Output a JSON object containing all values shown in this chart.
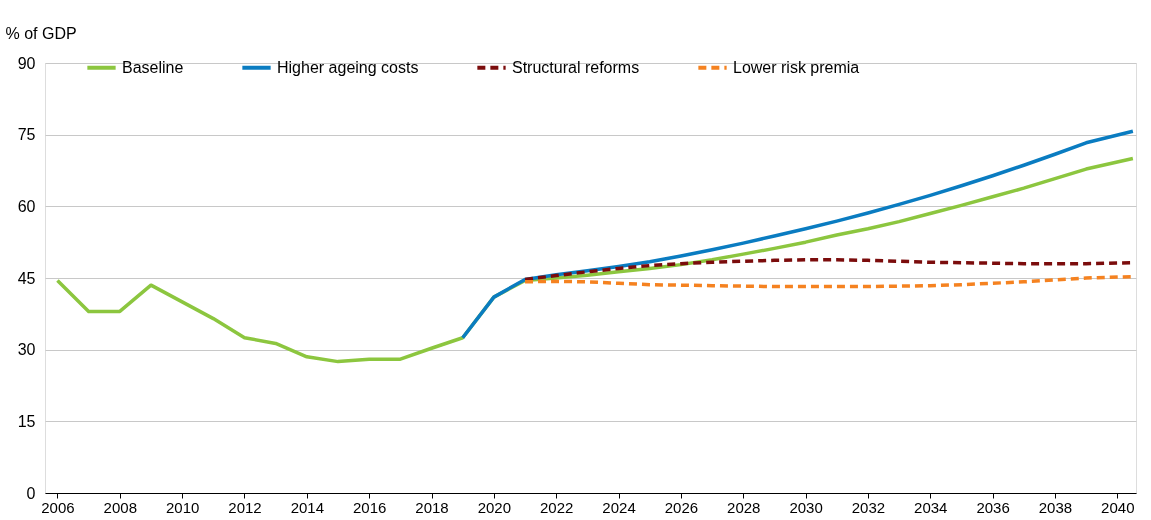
{
  "chart_data": {
    "type": "line",
    "ylabel": "% of GDP",
    "xlim": [
      2005.6,
      2040.6
    ],
    "xticks": [
      2006,
      2008,
      2010,
      2012,
      2014,
      2016,
      2018,
      2020,
      2022,
      2024,
      2026,
      2028,
      2030,
      2032,
      2034,
      2036,
      2038,
      2040
    ],
    "ylim": [
      0,
      90
    ],
    "yticks": [
      0,
      15,
      30,
      45,
      60,
      75,
      90
    ],
    "grid": "y",
    "legend": "top",
    "marker": "none",
    "series": [
      {
        "name": "Baseline",
        "color": "#8cc63f",
        "line_style": "solid",
        "x": [
          2006,
          2007,
          2008,
          2009,
          2010,
          2011,
          2012,
          2013,
          2014,
          2015,
          2016,
          2017,
          2018,
          2019,
          2020,
          2021,
          2022,
          2023,
          2024,
          2025,
          2026,
          2027,
          2028,
          2029,
          2030,
          2031,
          2032,
          2033,
          2034,
          2035,
          2036,
          2037,
          2038,
          2039,
          2040.5
        ],
        "values": [
          44.5,
          38,
          38,
          43.5,
          40,
          36.5,
          32.5,
          31.3,
          28.5,
          27.5,
          28,
          28,
          30.3,
          32.5,
          41,
          44.5,
          45,
          45.6,
          46.3,
          47,
          47.8,
          48.8,
          50,
          51.2,
          52.5,
          54,
          55.3,
          56.8,
          58.5,
          60.2,
          62,
          63.8,
          65.8,
          67.8,
          70
        ]
      },
      {
        "name": "Higher ageing costs",
        "color": "#0a7cc1",
        "line_style": "solid",
        "x": [
          2019,
          2020,
          2021,
          2022,
          2023,
          2024,
          2025,
          2026,
          2027,
          2028,
          2029,
          2030,
          2031,
          2032,
          2033,
          2034,
          2035,
          2036,
          2037,
          2038,
          2039,
          2040.5
        ],
        "values": [
          32.5,
          41,
          44.7,
          45.7,
          46.5,
          47.4,
          48.4,
          49.6,
          50.9,
          52.3,
          53.8,
          55.3,
          56.9,
          58.6,
          60.4,
          62.3,
          64.3,
          66.4,
          68.6,
          70.9,
          73.3,
          75.7
        ]
      },
      {
        "name": "Structural reforms",
        "color": "#7b0c0c",
        "line_style": "dashed",
        "x": [
          2021,
          2022,
          2023,
          2024,
          2025,
          2026,
          2027,
          2028,
          2029,
          2030,
          2031,
          2032,
          2033,
          2034,
          2035,
          2036,
          2037,
          2038,
          2039,
          2040.5
        ],
        "values": [
          44.7,
          45.5,
          46.3,
          47,
          47.6,
          48,
          48.3,
          48.5,
          48.7,
          48.8,
          48.8,
          48.7,
          48.5,
          48.3,
          48.2,
          48.1,
          48,
          48,
          48,
          48.2
        ]
      },
      {
        "name": "Lower risk premia",
        "color": "#f58220",
        "line_style": "dashed",
        "x": [
          2021,
          2022,
          2023,
          2024,
          2025,
          2026,
          2027,
          2028,
          2029,
          2030,
          2031,
          2032,
          2033,
          2034,
          2035,
          2036,
          2037,
          2038,
          2039,
          2040.5
        ],
        "values": [
          44.2,
          44.3,
          44.2,
          43.9,
          43.6,
          43.5,
          43.4,
          43.3,
          43.2,
          43.2,
          43.2,
          43.2,
          43.3,
          43.4,
          43.6,
          43.9,
          44.2,
          44.6,
          45,
          45.3
        ]
      }
    ]
  }
}
